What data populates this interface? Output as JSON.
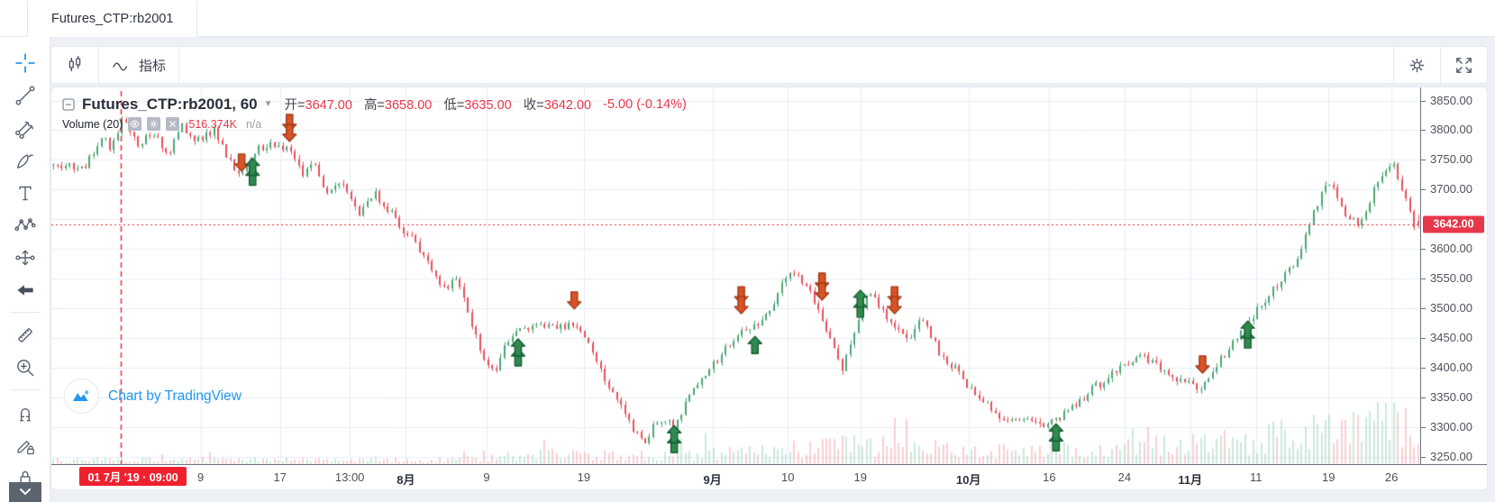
{
  "tab": {
    "title": "Futures_CTP:rb2001"
  },
  "toolbar": {
    "indicators_label": "指标",
    "icons": [
      "candle-style",
      "indicators",
      "settings",
      "fullscreen"
    ]
  },
  "side_toolbar_tools": [
    "crosshair",
    "trend-line",
    "pitchfork",
    "brush",
    "text",
    "xabcd-pattern",
    "projection",
    "arrow-back",
    "ruler",
    "zoom-in",
    "magnet",
    "lock-drawings",
    "lock",
    "scroll-down"
  ],
  "legend": {
    "title": "Futures_CTP:rb2001, 60",
    "ohlc": [
      {
        "label": "开=",
        "value": "3647.00"
      },
      {
        "label": "高=",
        "value": "3658.00"
      },
      {
        "label": "低=",
        "value": "3635.00"
      },
      {
        "label": "收=",
        "value": "3642.00"
      }
    ],
    "change": "-5.00 (-0.14%)",
    "volume_label": "Volume (20)",
    "volume_value": "516.374K",
    "volume_na": "n/a"
  },
  "attribution": {
    "text": "Chart by TradingView"
  },
  "price_axis": {
    "ticks": [
      "3850.00",
      "3800.00",
      "3750.00",
      "3700.00",
      "3600.00",
      "3550.00",
      "3500.00",
      "3450.00",
      "3400.00",
      "3350.00",
      "3300.00",
      "3250.00"
    ],
    "last_price_label": "3642.00"
  },
  "time_axis": {
    "crosshair_label": "01 7月 '19 · 09:00",
    "ticks": [
      {
        "label": "9",
        "x": 0.109
      },
      {
        "label": "17",
        "x": 0.167
      },
      {
        "label": "13:00",
        "x": 0.218
      },
      {
        "label": "8月",
        "x": 0.259,
        "bold": true
      },
      {
        "label": "9",
        "x": 0.318
      },
      {
        "label": "19",
        "x": 0.389
      },
      {
        "label": "9月",
        "x": 0.483,
        "bold": true
      },
      {
        "label": "10",
        "x": 0.538
      },
      {
        "label": "19",
        "x": 0.591
      },
      {
        "label": "10月",
        "x": 0.67,
        "bold": true
      },
      {
        "label": "16",
        "x": 0.729
      },
      {
        "label": "24",
        "x": 0.784
      },
      {
        "label": "11月",
        "x": 0.832,
        "bold": true
      },
      {
        "label": "11",
        "x": 0.88
      },
      {
        "label": "19",
        "x": 0.933
      },
      {
        "label": "26",
        "x": 0.979
      }
    ]
  },
  "chart_data": {
    "type": "candlestick",
    "symbol": "Futures_CTP:rb2001",
    "interval": "60",
    "current_bar": {
      "open": 3647.0,
      "high": 3658.0,
      "low": 3635.0,
      "close": 3642.0,
      "change": -5.0,
      "change_pct": -0.14
    },
    "last_price": 3642.0,
    "price_range": [
      3238,
      3872
    ],
    "y_ticks": [
      3850,
      3800,
      3750,
      3700,
      3600,
      3550,
      3500,
      3450,
      3400,
      3350,
      3300,
      3250
    ],
    "grid": true,
    "num_candles": 340,
    "crosshair_vline_x": 0.051,
    "price_path": [
      [
        0.024,
        3740
      ],
      [
        0.036,
        3795
      ],
      [
        0.042,
        3760
      ],
      [
        0.051,
        3825
      ],
      [
        0.062,
        3770
      ],
      [
        0.072,
        3800
      ],
      [
        0.085,
        3760
      ],
      [
        0.094,
        3810
      ],
      [
        0.104,
        3780
      ],
      [
        0.118,
        3800
      ],
      [
        0.128,
        3750
      ],
      [
        0.137,
        3722
      ],
      [
        0.147,
        3765
      ],
      [
        0.16,
        3780
      ],
      [
        0.174,
        3762
      ],
      [
        0.183,
        3720
      ],
      [
        0.19,
        3745
      ],
      [
        0.2,
        3690
      ],
      [
        0.21,
        3718
      ],
      [
        0.223,
        3660
      ],
      [
        0.236,
        3692
      ],
      [
        0.249,
        3655
      ],
      [
        0.259,
        3625
      ],
      [
        0.269,
        3600
      ],
      [
        0.278,
        3560
      ],
      [
        0.288,
        3530
      ],
      [
        0.295,
        3556
      ],
      [
        0.305,
        3480
      ],
      [
        0.315,
        3420
      ],
      [
        0.323,
        3388
      ],
      [
        0.331,
        3440
      ],
      [
        0.341,
        3460
      ],
      [
        0.354,
        3472
      ],
      [
        0.368,
        3465
      ],
      [
        0.382,
        3472
      ],
      [
        0.394,
        3440
      ],
      [
        0.404,
        3380
      ],
      [
        0.414,
        3348
      ],
      [
        0.423,
        3300
      ],
      [
        0.433,
        3272
      ],
      [
        0.443,
        3312
      ],
      [
        0.455,
        3305
      ],
      [
        0.466,
        3350
      ],
      [
        0.479,
        3392
      ],
      [
        0.489,
        3420
      ],
      [
        0.499,
        3450
      ],
      [
        0.504,
        3462
      ],
      [
        0.514,
        3468
      ],
      [
        0.525,
        3500
      ],
      [
        0.539,
        3562
      ],
      [
        0.549,
        3545
      ],
      [
        0.558,
        3510
      ],
      [
        0.568,
        3450
      ],
      [
        0.578,
        3400
      ],
      [
        0.588,
        3470
      ],
      [
        0.598,
        3532
      ],
      [
        0.607,
        3500
      ],
      [
        0.616,
        3472
      ],
      [
        0.627,
        3450
      ],
      [
        0.637,
        3482
      ],
      [
        0.65,
        3420
      ],
      [
        0.66,
        3400
      ],
      [
        0.673,
        3360
      ],
      [
        0.687,
        3330
      ],
      [
        0.699,
        3308
      ],
      [
        0.713,
        3322
      ],
      [
        0.726,
        3298
      ],
      [
        0.734,
        3312
      ],
      [
        0.745,
        3330
      ],
      [
        0.759,
        3360
      ],
      [
        0.772,
        3382
      ],
      [
        0.784,
        3402
      ],
      [
        0.798,
        3420
      ],
      [
        0.811,
        3400
      ],
      [
        0.825,
        3380
      ],
      [
        0.84,
        3368
      ],
      [
        0.854,
        3410
      ],
      [
        0.867,
        3450
      ],
      [
        0.874,
        3472
      ],
      [
        0.883,
        3500
      ],
      [
        0.897,
        3540
      ],
      [
        0.91,
        3580
      ],
      [
        0.92,
        3640
      ],
      [
        0.929,
        3692
      ],
      [
        0.936,
        3712
      ],
      [
        0.946,
        3660
      ],
      [
        0.956,
        3642
      ],
      [
        0.966,
        3690
      ],
      [
        0.975,
        3732
      ],
      [
        0.982,
        3748
      ],
      [
        0.988,
        3700
      ],
      [
        0.997,
        3642
      ]
    ],
    "markers": [
      {
        "x": 0.139,
        "price": 3722,
        "dir": "down",
        "count": 1
      },
      {
        "x": 0.147,
        "price": 3762,
        "dir": "up",
        "count": 2
      },
      {
        "x": 0.174,
        "price": 3772,
        "dir": "down",
        "count": 2
      },
      {
        "x": 0.341,
        "price": 3458,
        "dir": "up",
        "count": 2
      },
      {
        "x": 0.382,
        "price": 3490,
        "dir": "down",
        "count": 1
      },
      {
        "x": 0.455,
        "price": 3312,
        "dir": "up",
        "count": 2
      },
      {
        "x": 0.504,
        "price": 3482,
        "dir": "down",
        "count": 2
      },
      {
        "x": 0.514,
        "price": 3462,
        "dir": "up",
        "count": 1
      },
      {
        "x": 0.563,
        "price": 3505,
        "dir": "down",
        "count": 2
      },
      {
        "x": 0.591,
        "price": 3540,
        "dir": "up",
        "count": 2
      },
      {
        "x": 0.616,
        "price": 3482,
        "dir": "down",
        "count": 2
      },
      {
        "x": 0.734,
        "price": 3315,
        "dir": "up",
        "count": 2
      },
      {
        "x": 0.841,
        "price": 3382,
        "dir": "down",
        "count": 1
      },
      {
        "x": 0.874,
        "price": 3488,
        "dir": "up",
        "count": 2
      }
    ],
    "volume_envelope": [
      [
        0.0,
        0.1
      ],
      [
        0.3,
        0.1
      ],
      [
        0.36,
        0.22
      ],
      [
        0.44,
        0.18
      ],
      [
        0.52,
        0.28
      ],
      [
        0.58,
        0.42
      ],
      [
        0.63,
        0.38
      ],
      [
        0.7,
        0.3
      ],
      [
        0.76,
        0.34
      ],
      [
        0.82,
        0.42
      ],
      [
        0.87,
        0.5
      ],
      [
        0.92,
        0.72
      ],
      [
        0.96,
        0.95
      ],
      [
        1.0,
        0.9
      ]
    ],
    "colors": {
      "up": "#4ba772",
      "down": "#e8505b",
      "vol_up": "rgba(96,190,144,0.32)",
      "vol_down": "rgba(236,100,110,0.30)",
      "grid": "#e7edf5",
      "marker_up_fill": "#2e8b4f",
      "marker_up_stroke": "#1a5c33",
      "marker_down_fill": "#d95327",
      "marker_down_stroke": "#9e3a16",
      "accent_red": "#f0212f",
      "badge_red": "#e8374a"
    }
  }
}
